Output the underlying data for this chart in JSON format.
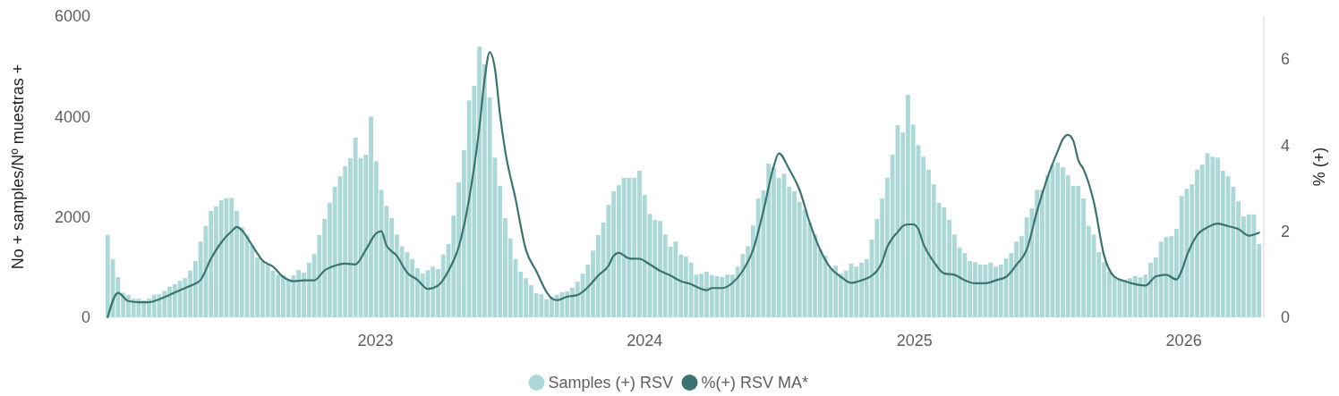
{
  "chart_data": {
    "type": "bar",
    "ylabel": "No + samples/Nº muestras +",
    "y2label": "% (+)",
    "legend": "bottom",
    "xlim": [
      "2021-12-30",
      "2026-04-17"
    ],
    "xticks": [
      "2023",
      "2024",
      "2025",
      "2026"
    ],
    "ylim": [
      0,
      6000
    ],
    "yticks": [
      0,
      2000,
      4000,
      6000
    ],
    "y2lim": [
      0,
      7
    ],
    "y2ticks": [
      0,
      2,
      4,
      6
    ],
    "x": [
      "2022-01-03",
      "2022-01-10",
      "2022-01-17",
      "2022-01-24",
      "2022-01-31",
      "2022-02-07",
      "2022-02-14",
      "2022-02-21",
      "2022-02-28",
      "2022-03-07",
      "2022-03-14",
      "2022-03-21",
      "2022-03-28",
      "2022-04-04",
      "2022-04-11",
      "2022-04-18",
      "2022-04-25",
      "2022-05-02",
      "2022-05-09",
      "2022-05-16",
      "2022-05-23",
      "2022-05-30",
      "2022-06-06",
      "2022-06-13",
      "2022-06-20",
      "2022-06-27",
      "2022-07-04",
      "2022-07-11",
      "2022-07-18",
      "2022-07-25",
      "2022-08-01",
      "2022-08-08",
      "2022-08-15",
      "2022-08-22",
      "2022-08-29",
      "2022-09-05",
      "2022-09-12",
      "2022-09-19",
      "2022-09-26",
      "2022-10-03",
      "2022-10-10",
      "2022-10-17",
      "2022-10-24",
      "2022-10-31",
      "2022-11-07",
      "2022-11-14",
      "2022-11-21",
      "2022-11-28",
      "2022-12-05",
      "2022-12-12",
      "2022-12-19",
      "2022-12-26",
      "2023-01-02",
      "2023-01-09",
      "2023-01-16",
      "2023-01-23",
      "2023-01-30",
      "2023-02-06",
      "2023-02-13",
      "2023-02-20",
      "2023-02-27",
      "2023-03-06",
      "2023-03-13",
      "2023-03-20",
      "2023-03-27",
      "2023-04-03",
      "2023-04-10",
      "2023-04-17",
      "2023-04-24",
      "2023-05-01",
      "2023-05-08",
      "2023-05-15",
      "2023-05-22",
      "2023-05-29",
      "2023-06-05",
      "2023-06-12",
      "2023-06-19",
      "2023-06-26",
      "2023-07-03",
      "2023-07-10",
      "2023-07-17",
      "2023-07-24",
      "2023-07-31",
      "2023-08-07",
      "2023-08-14",
      "2023-08-21",
      "2023-08-28",
      "2023-09-04",
      "2023-09-11",
      "2023-09-18",
      "2023-09-25",
      "2023-10-02",
      "2023-10-09",
      "2023-10-16",
      "2023-10-23",
      "2023-10-30",
      "2023-11-06",
      "2023-11-13",
      "2023-11-20",
      "2023-11-27",
      "2023-12-04",
      "2023-12-11",
      "2023-12-18",
      "2023-12-25",
      "2024-01-01",
      "2024-01-08",
      "2024-01-15",
      "2024-01-22",
      "2024-01-29",
      "2024-02-05",
      "2024-02-12",
      "2024-02-19",
      "2024-02-26",
      "2024-03-04",
      "2024-03-11",
      "2024-03-18",
      "2024-03-25",
      "2024-04-01",
      "2024-04-08",
      "2024-04-15",
      "2024-04-22",
      "2024-04-29",
      "2024-05-06",
      "2024-05-13",
      "2024-05-20",
      "2024-05-27",
      "2024-06-03",
      "2024-06-10",
      "2024-06-17",
      "2024-06-24",
      "2024-07-01",
      "2024-07-08",
      "2024-07-15",
      "2024-07-22",
      "2024-07-29",
      "2024-08-05",
      "2024-08-12",
      "2024-08-19",
      "2024-08-26",
      "2024-09-02",
      "2024-09-09",
      "2024-09-16",
      "2024-09-23",
      "2024-09-30",
      "2024-10-07",
      "2024-10-14",
      "2024-10-21",
      "2024-10-28",
      "2024-11-04",
      "2024-11-11",
      "2024-11-18",
      "2024-11-25",
      "2024-12-02",
      "2024-12-09",
      "2024-12-16",
      "2024-12-23",
      "2024-12-30",
      "2025-01-06",
      "2025-01-13",
      "2025-01-20",
      "2025-01-27",
      "2025-02-03",
      "2025-02-10",
      "2025-02-17",
      "2025-02-24",
      "2025-03-03",
      "2025-03-10",
      "2025-03-17",
      "2025-03-24",
      "2025-03-31",
      "2025-04-07",
      "2025-04-14",
      "2025-04-21",
      "2025-04-28",
      "2025-05-05",
      "2025-05-12",
      "2025-05-19",
      "2025-05-26",
      "2025-06-02",
      "2025-06-09",
      "2025-06-16",
      "2025-06-23",
      "2025-06-30",
      "2025-07-07",
      "2025-07-14",
      "2025-07-21",
      "2025-07-28",
      "2025-08-04",
      "2025-08-11",
      "2025-08-18",
      "2025-08-25",
      "2025-09-01",
      "2025-09-08",
      "2025-09-15",
      "2025-09-22",
      "2025-09-29",
      "2025-10-06",
      "2025-10-13",
      "2025-10-20",
      "2025-10-27",
      "2025-11-03",
      "2025-11-10",
      "2025-11-17",
      "2025-11-24",
      "2025-12-01",
      "2025-12-08",
      "2025-12-15",
      "2025-12-22",
      "2025-12-29",
      "2026-01-05",
      "2026-01-12",
      "2026-01-19",
      "2026-01-26",
      "2026-02-02",
      "2026-02-09",
      "2026-02-16",
      "2026-02-23",
      "2026-03-02",
      "2026-03-09",
      "2026-03-16",
      "2026-03-23",
      "2026-03-30",
      "2026-04-06",
      "2026-04-13"
    ],
    "series": [
      {
        "name": "Samples (+) RSV",
        "color": "#acd9d8",
        "values": [
          1640,
          1160,
          800,
          490,
          450,
          370,
          370,
          340,
          370,
          450,
          460,
          530,
          610,
          660,
          730,
          780,
          930,
          1120,
          1510,
          1820,
          2120,
          2210,
          2330,
          2370,
          2380,
          2120,
          1800,
          1640,
          1440,
          1190,
          1120,
          1050,
          930,
          850,
          840,
          750,
          840,
          940,
          890,
          1090,
          1260,
          1640,
          1960,
          2280,
          2600,
          2810,
          3010,
          3170,
          3580,
          3170,
          3240,
          4000,
          3110,
          2540,
          2220,
          1980,
          1650,
          1420,
          1300,
          1160,
          980,
          870,
          940,
          1010,
          960,
          1250,
          1460,
          2030,
          2690,
          3330,
          4320,
          4610,
          5390,
          5040,
          4380,
          3180,
          2620,
          1980,
          1570,
          1160,
          910,
          780,
          640,
          480,
          460,
          360,
          410,
          450,
          500,
          520,
          590,
          710,
          870,
          1050,
          1330,
          1640,
          1890,
          2240,
          2510,
          2630,
          2780,
          2780,
          2780,
          2920,
          2440,
          2060,
          1940,
          1920,
          1650,
          1410,
          1510,
          1250,
          1210,
          1090,
          850,
          870,
          910,
          840,
          820,
          800,
          850,
          850,
          1010,
          1260,
          1420,
          1830,
          2370,
          2530,
          3060,
          2990,
          2780,
          2860,
          2600,
          2510,
          2300,
          2150,
          1890,
          1650,
          1350,
          1230,
          980,
          1030,
          870,
          930,
          1070,
          1010,
          1090,
          1160,
          1550,
          1960,
          2370,
          2780,
          3240,
          3830,
          3680,
          4430,
          3840,
          3430,
          3200,
          2940,
          2650,
          2280,
          2190,
          1940,
          1650,
          1390,
          1280,
          1120,
          1100,
          1050,
          1050,
          1090,
          1010,
          1050,
          1170,
          1280,
          1510,
          1620,
          1990,
          2170,
          2540,
          2540,
          2830,
          3040,
          3080,
          2990,
          2830,
          2620,
          2620,
          2370,
          1820,
          1650,
          1300,
          1100,
          910,
          820,
          750,
          750,
          780,
          820,
          800,
          850,
          1090,
          1190,
          1510,
          1600,
          1620,
          1760,
          2420,
          2560,
          2650,
          2940,
          3040,
          3270,
          3200,
          3180,
          2920,
          2810,
          2600,
          2310,
          2010,
          2050,
          2050,
          1460
        ]
      },
      {
        "name": "%(+) RSV MA*",
        "type": "line",
        "axis": "y2",
        "color": "#3a7470",
        "x": [
          "2022-01-03",
          "2022-01-17",
          "2022-01-31",
          "2022-02-14",
          "2022-02-28",
          "2022-03-14",
          "2022-03-28",
          "2022-04-11",
          "2022-04-25",
          "2022-05-09",
          "2022-05-23",
          "2022-06-06",
          "2022-06-20",
          "2022-06-27",
          "2022-07-04",
          "2022-07-18",
          "2022-08-01",
          "2022-08-15",
          "2022-08-29",
          "2022-09-12",
          "2022-09-26",
          "2022-10-10",
          "2022-10-24",
          "2022-11-07",
          "2022-11-21",
          "2022-12-05",
          "2022-12-19",
          "2023-01-02",
          "2023-01-09",
          "2023-01-16",
          "2023-01-30",
          "2023-02-13",
          "2023-02-27",
          "2023-03-13",
          "2023-03-27",
          "2023-04-10",
          "2023-04-24",
          "2023-05-08",
          "2023-05-22",
          "2023-05-29",
          "2023-06-05",
          "2023-06-12",
          "2023-06-19",
          "2023-06-26",
          "2023-07-10",
          "2023-07-24",
          "2023-08-07",
          "2023-08-21",
          "2023-08-28",
          "2023-09-04",
          "2023-09-18",
          "2023-10-02",
          "2023-10-16",
          "2023-10-30",
          "2023-11-13",
          "2023-11-20",
          "2023-11-27",
          "2023-12-11",
          "2023-12-25",
          "2024-01-08",
          "2024-01-22",
          "2024-02-05",
          "2024-02-19",
          "2024-03-04",
          "2024-03-18",
          "2024-03-25",
          "2024-04-01",
          "2024-04-15",
          "2024-04-29",
          "2024-05-13",
          "2024-05-27",
          "2024-06-10",
          "2024-06-24",
          "2024-07-01",
          "2024-07-15",
          "2024-07-29",
          "2024-08-12",
          "2024-08-26",
          "2024-09-09",
          "2024-09-23",
          "2024-10-07",
          "2024-10-21",
          "2024-11-04",
          "2024-11-11",
          "2024-11-18",
          "2024-11-25",
          "2024-12-02",
          "2024-12-09",
          "2024-12-16",
          "2024-12-23",
          "2024-12-30",
          "2025-01-06",
          "2025-01-13",
          "2025-01-27",
          "2025-02-10",
          "2025-02-24",
          "2025-03-10",
          "2025-03-24",
          "2025-04-07",
          "2025-04-21",
          "2025-05-05",
          "2025-05-19",
          "2025-06-02",
          "2025-06-16",
          "2025-06-30",
          "2025-07-14",
          "2025-07-21",
          "2025-07-28",
          "2025-08-04",
          "2025-08-11",
          "2025-08-18",
          "2025-09-01",
          "2025-09-15",
          "2025-09-29",
          "2025-10-13",
          "2025-10-27",
          "2025-11-10",
          "2025-11-24",
          "2025-12-08",
          "2025-12-22",
          "2025-12-29",
          "2026-01-05",
          "2026-01-19",
          "2026-02-02",
          "2026-02-16",
          "2026-03-02",
          "2026-03-16",
          "2026-03-30",
          "2026-04-13"
        ],
        "values": [
          0,
          0.57,
          0.38,
          0.35,
          0.35,
          0.42,
          0.52,
          0.63,
          0.73,
          0.87,
          1.36,
          1.74,
          2.0,
          2.1,
          2.02,
          1.67,
          1.32,
          1.18,
          0.94,
          0.84,
          0.86,
          0.86,
          1.09,
          1.2,
          1.25,
          1.23,
          1.57,
          1.95,
          2.0,
          1.67,
          1.43,
          1.04,
          0.87,
          0.66,
          0.74,
          1.08,
          1.64,
          2.75,
          4.42,
          5.53,
          6.16,
          5.78,
          4.7,
          3.86,
          2.75,
          1.57,
          1.08,
          0.59,
          0.44,
          0.4,
          0.48,
          0.52,
          0.7,
          0.97,
          1.2,
          1.43,
          1.5,
          1.37,
          1.36,
          1.23,
          1.08,
          0.97,
          0.84,
          0.77,
          0.66,
          0.63,
          0.68,
          0.68,
          0.8,
          1.08,
          1.57,
          2.47,
          3.51,
          3.81,
          3.44,
          2.96,
          2.19,
          1.57,
          1.15,
          0.94,
          0.8,
          0.86,
          0.97,
          1.08,
          1.29,
          1.64,
          1.84,
          1.98,
          2.12,
          2.16,
          2.16,
          2.05,
          1.7,
          1.29,
          1.02,
          0.99,
          0.86,
          0.79,
          0.79,
          0.86,
          0.94,
          1.22,
          1.57,
          2.47,
          3.24,
          3.86,
          4.14,
          4.24,
          4.11,
          3.65,
          3.44,
          2.68,
          1.43,
          0.94,
          0.84,
          0.77,
          0.74,
          0.95,
          0.99,
          0.88,
          1.08,
          1.43,
          1.91,
          2.09,
          2.18,
          2.12,
          2.05,
          1.9,
          1.97
        ]
      }
    ]
  }
}
